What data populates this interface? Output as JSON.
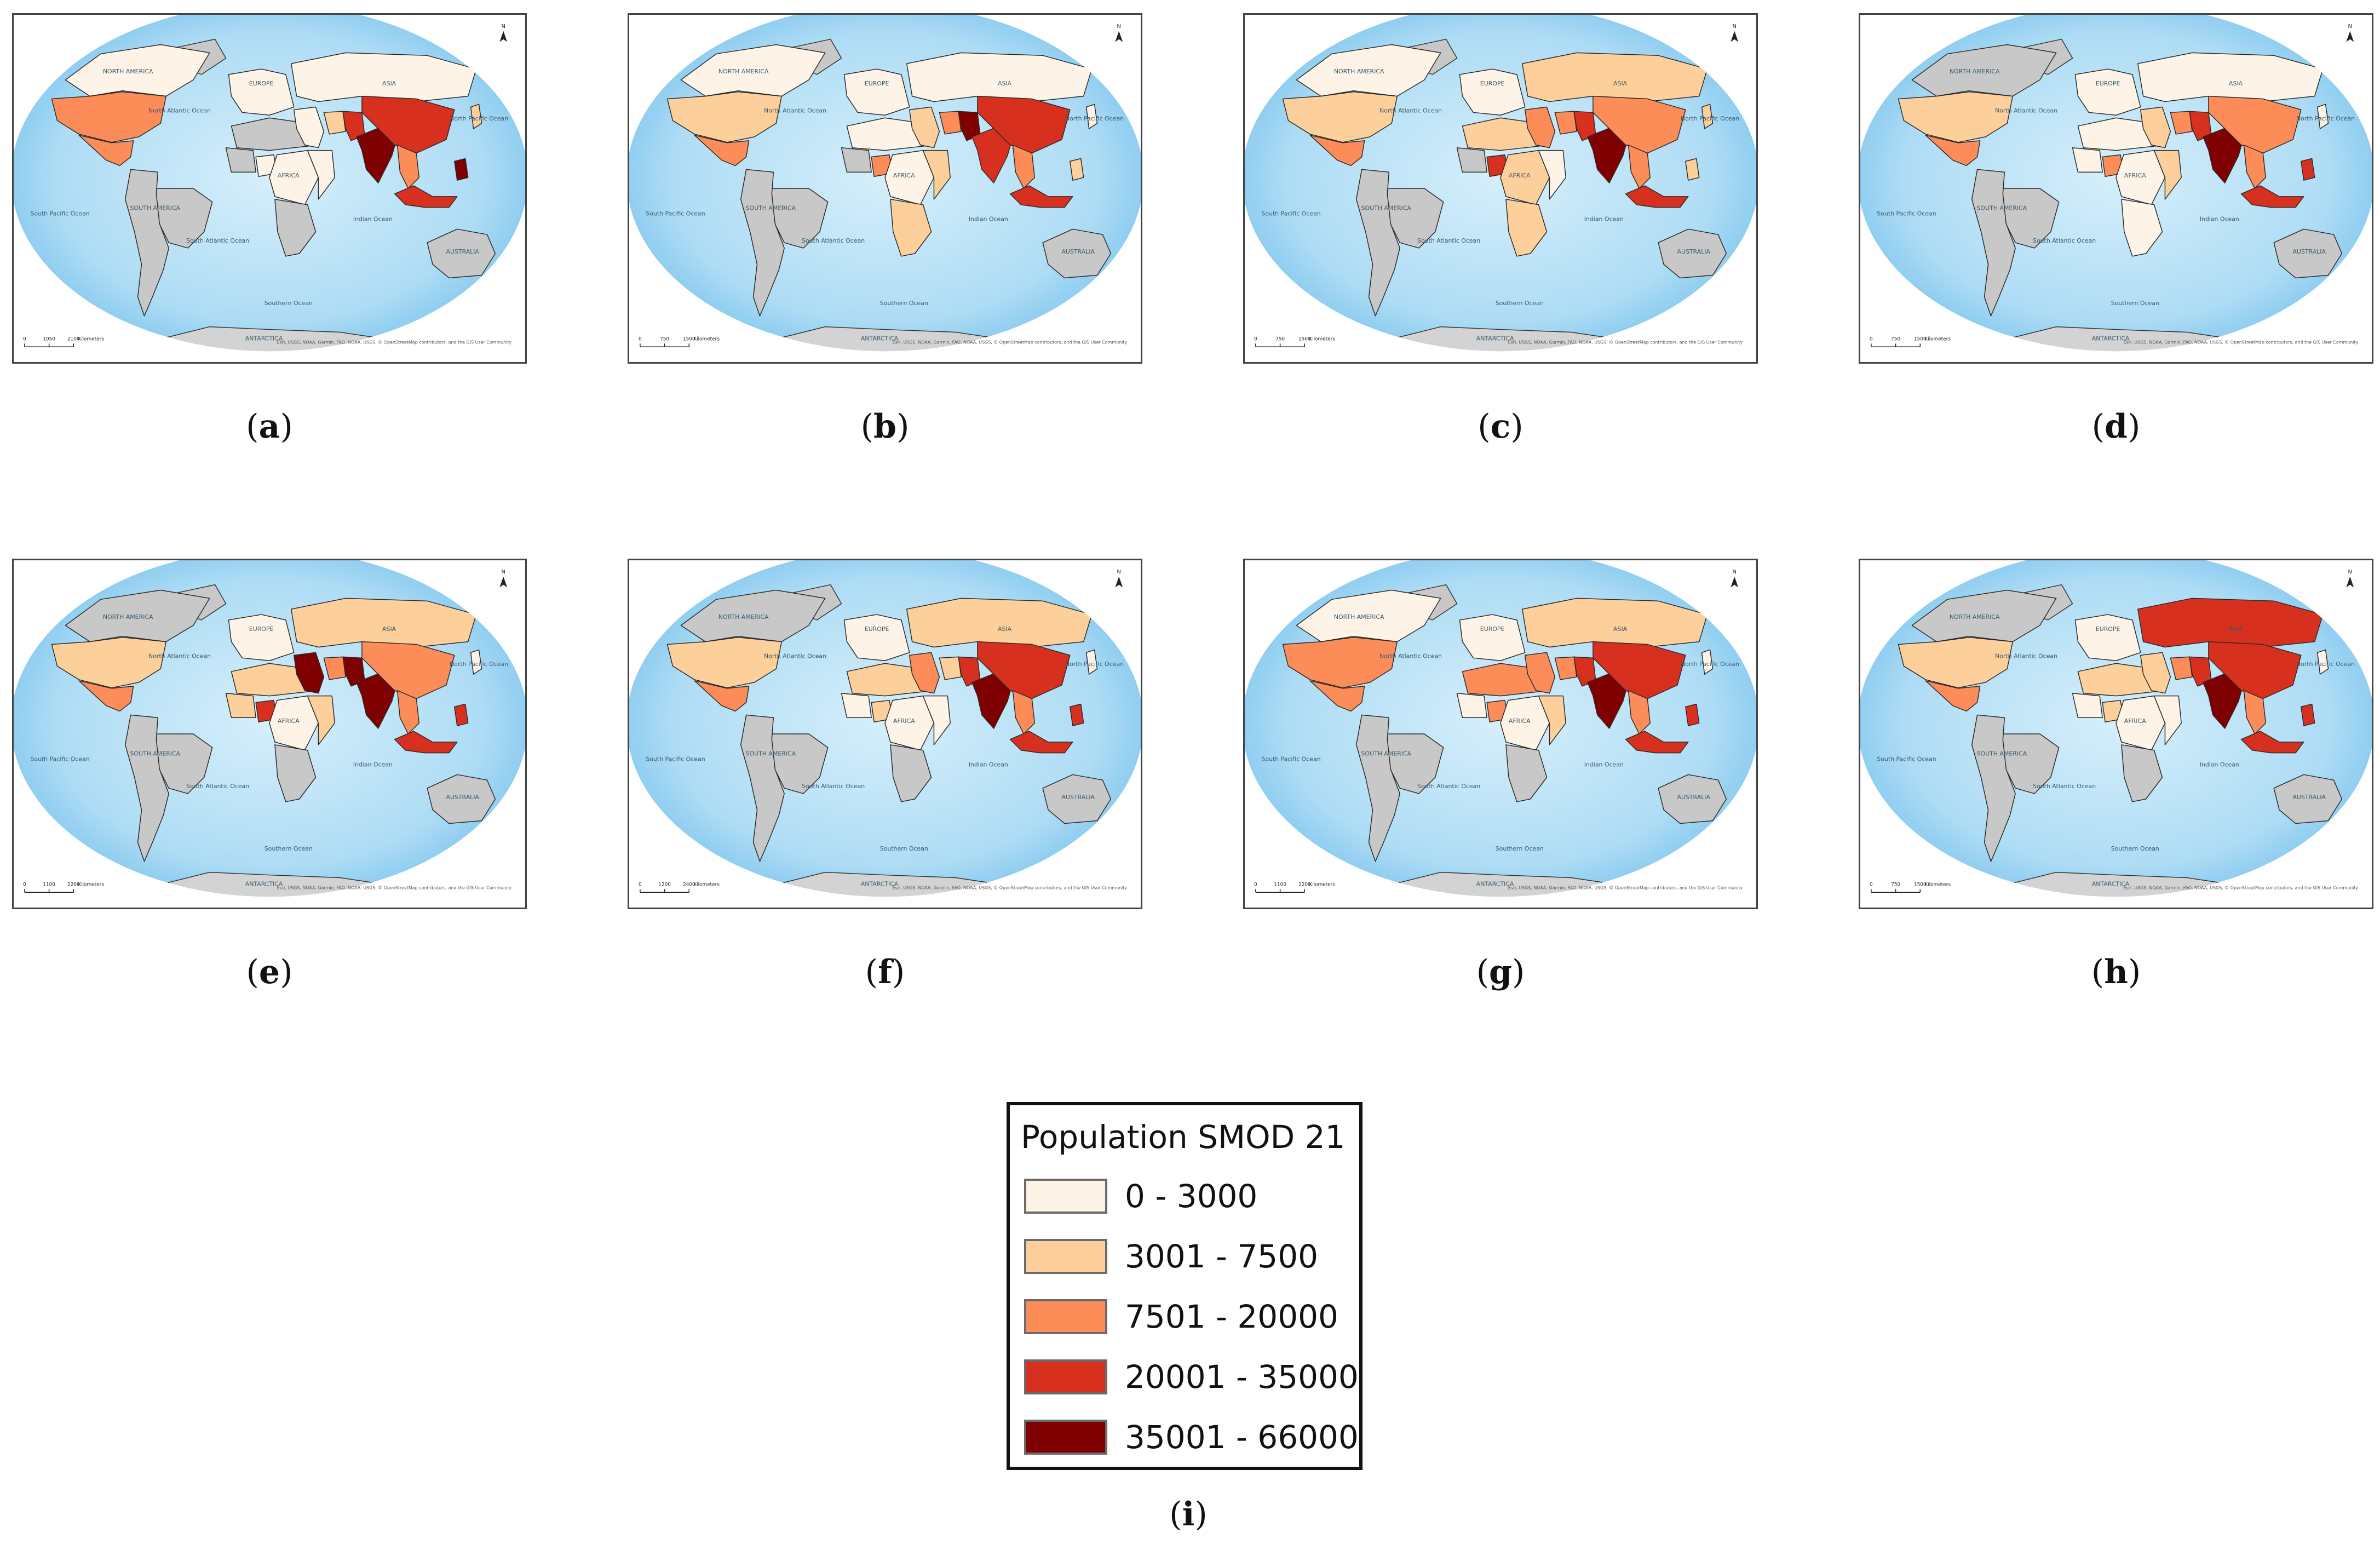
{
  "legend": {
    "title": "Population SMOD 21",
    "classes": [
      {
        "label": "0 - 3000",
        "color": "#fdf3e6"
      },
      {
        "label": "3001 - 7500",
        "color": "#fdd09b"
      },
      {
        "label": "7501 - 20000",
        "color": "#fc8d59"
      },
      {
        "label": "20001 - 35000",
        "color": "#d7301f"
      },
      {
        "label": "35001 - 66000",
        "color": "#7f0000"
      }
    ],
    "caption_letter": "i"
  },
  "map_colors": {
    "ocean": "#aedcf5",
    "ocean_edge": "#d6effb",
    "nodata": "#c8c8c8"
  },
  "map_labels": {
    "north_america": "NORTH AMERICA",
    "south_america": "SOUTH AMERICA",
    "africa": "AFRICA",
    "europe": "EUROPE",
    "asia": "ASIA",
    "australia": "AUSTRALIA",
    "antarctica": "ANTARCTICA",
    "n_atlantic": "North Atlantic Ocean",
    "s_atlantic": "South Atlantic Ocean",
    "indian": "Indian Ocean",
    "n_pacific": "North Pacific Ocean",
    "s_pacific": "South Pacific Ocean",
    "southern": "Southern Ocean",
    "north_arrow": "N",
    "attribution": "Esri, USGS, NOAA, Garmin, FAO, NOAA, USGS, © OpenStreetMap contributors, and the GIS User Community",
    "scale_units": "Kilometers"
  },
  "maps": [
    {
      "letter": "a",
      "scale": [
        "0",
        "1050",
        "2100"
      ],
      "classes": {
        "north_america": 0,
        "usa": 2,
        "mexico": 2,
        "brazil": -1,
        "south_america_rest": -1,
        "nigeria": 0,
        "west_africa": -1,
        "central_africa": 0,
        "east_africa": 0,
        "south_africa": -1,
        "north_africa": -1,
        "europe": 0,
        "russia": 0,
        "middle_east": 0,
        "iran": 1,
        "pakistan": 3,
        "india": 4,
        "china": 3,
        "southeast_asia": 2,
        "indonesia": 3,
        "philippines": 4,
        "japan": 1,
        "australia": -1
      }
    },
    {
      "letter": "b",
      "scale": [
        "0",
        "750",
        "1500"
      ],
      "classes": {
        "north_america": 0,
        "usa": 1,
        "mexico": 2,
        "brazil": -1,
        "south_america_rest": -1,
        "nigeria": 2,
        "west_africa": -1,
        "central_africa": 0,
        "east_africa": 1,
        "south_africa": 1,
        "north_africa": 0,
        "europe": 0,
        "russia": 0,
        "middle_east": 1,
        "iran": 2,
        "pakistan": 4,
        "india": 3,
        "china": 3,
        "southeast_asia": 2,
        "indonesia": 3,
        "philippines": 1,
        "japan": 0,
        "australia": -1
      }
    },
    {
      "letter": "c",
      "scale": [
        "0",
        "750",
        "1500"
      ],
      "classes": {
        "north_america": 0,
        "usa": 1,
        "mexico": 2,
        "brazil": -1,
        "south_america_rest": -1,
        "nigeria": 3,
        "west_africa": -1,
        "central_africa": 1,
        "east_africa": 0,
        "south_africa": 1,
        "north_africa": 1,
        "europe": 0,
        "russia": 1,
        "middle_east": 2,
        "iran": 2,
        "pakistan": 3,
        "india": 4,
        "china": 2,
        "southeast_asia": 2,
        "indonesia": 3,
        "philippines": 1,
        "japan": 1,
        "australia": -1
      }
    },
    {
      "letter": "d",
      "scale": [
        "0",
        "750",
        "1500"
      ],
      "classes": {
        "north_america": -1,
        "usa": 1,
        "mexico": 2,
        "brazil": -1,
        "south_america_rest": -1,
        "nigeria": 2,
        "west_africa": 0,
        "central_africa": 0,
        "east_africa": 1,
        "south_africa": 0,
        "north_africa": 0,
        "europe": 0,
        "russia": 0,
        "middle_east": 1,
        "iran": 2,
        "pakistan": 3,
        "india": 4,
        "china": 2,
        "southeast_asia": 2,
        "indonesia": 3,
        "philippines": 3,
        "japan": 0,
        "australia": -1
      }
    },
    {
      "letter": "e",
      "scale": [
        "0",
        "1100",
        "2200"
      ],
      "classes": {
        "north_america": -1,
        "usa": 1,
        "mexico": 2,
        "brazil": -1,
        "south_america_rest": -1,
        "nigeria": 3,
        "west_africa": 1,
        "central_africa": 0,
        "east_africa": 1,
        "south_africa": -1,
        "north_africa": 1,
        "europe": 0,
        "russia": 1,
        "middle_east": 4,
        "iran": 2,
        "pakistan": 4,
        "india": 4,
        "china": 2,
        "southeast_asia": 2,
        "indonesia": 3,
        "philippines": 3,
        "japan": 0,
        "australia": -1
      }
    },
    {
      "letter": "f",
      "scale": [
        "0",
        "1200",
        "2400"
      ],
      "classes": {
        "north_america": -1,
        "usa": 1,
        "mexico": 2,
        "brazil": -1,
        "south_america_rest": -1,
        "nigeria": 1,
        "west_africa": 0,
        "central_africa": 0,
        "east_africa": 0,
        "south_africa": -1,
        "north_africa": 1,
        "europe": 0,
        "russia": 1,
        "middle_east": 2,
        "iran": 1,
        "pakistan": 3,
        "india": 4,
        "china": 3,
        "southeast_asia": 2,
        "indonesia": 3,
        "philippines": 3,
        "japan": 0,
        "australia": -1
      }
    },
    {
      "letter": "g",
      "scale": [
        "0",
        "1100",
        "2200"
      ],
      "classes": {
        "north_america": 0,
        "usa": 2,
        "mexico": 2,
        "brazil": -1,
        "south_america_rest": -1,
        "nigeria": 2,
        "west_africa": 0,
        "central_africa": 0,
        "east_africa": 1,
        "south_africa": -1,
        "north_africa": 2,
        "europe": 0,
        "russia": 1,
        "middle_east": 2,
        "iran": 2,
        "pakistan": 3,
        "india": 4,
        "china": 3,
        "southeast_asia": 2,
        "indonesia": 3,
        "philippines": 3,
        "japan": 0,
        "australia": -1
      }
    },
    {
      "letter": "h",
      "scale": [
        "0",
        "750",
        "1500"
      ],
      "classes": {
        "north_america": -1,
        "usa": 1,
        "mexico": 2,
        "brazil": -1,
        "south_america_rest": -1,
        "nigeria": 1,
        "west_africa": 0,
        "central_africa": 0,
        "east_africa": 0,
        "south_africa": -1,
        "north_africa": 1,
        "europe": 0,
        "russia": 3,
        "middle_east": 1,
        "iran": 2,
        "pakistan": 3,
        "india": 4,
        "china": 3,
        "southeast_asia": 2,
        "indonesia": 3,
        "philippines": 3,
        "japan": 0,
        "australia": -1
      }
    }
  ]
}
